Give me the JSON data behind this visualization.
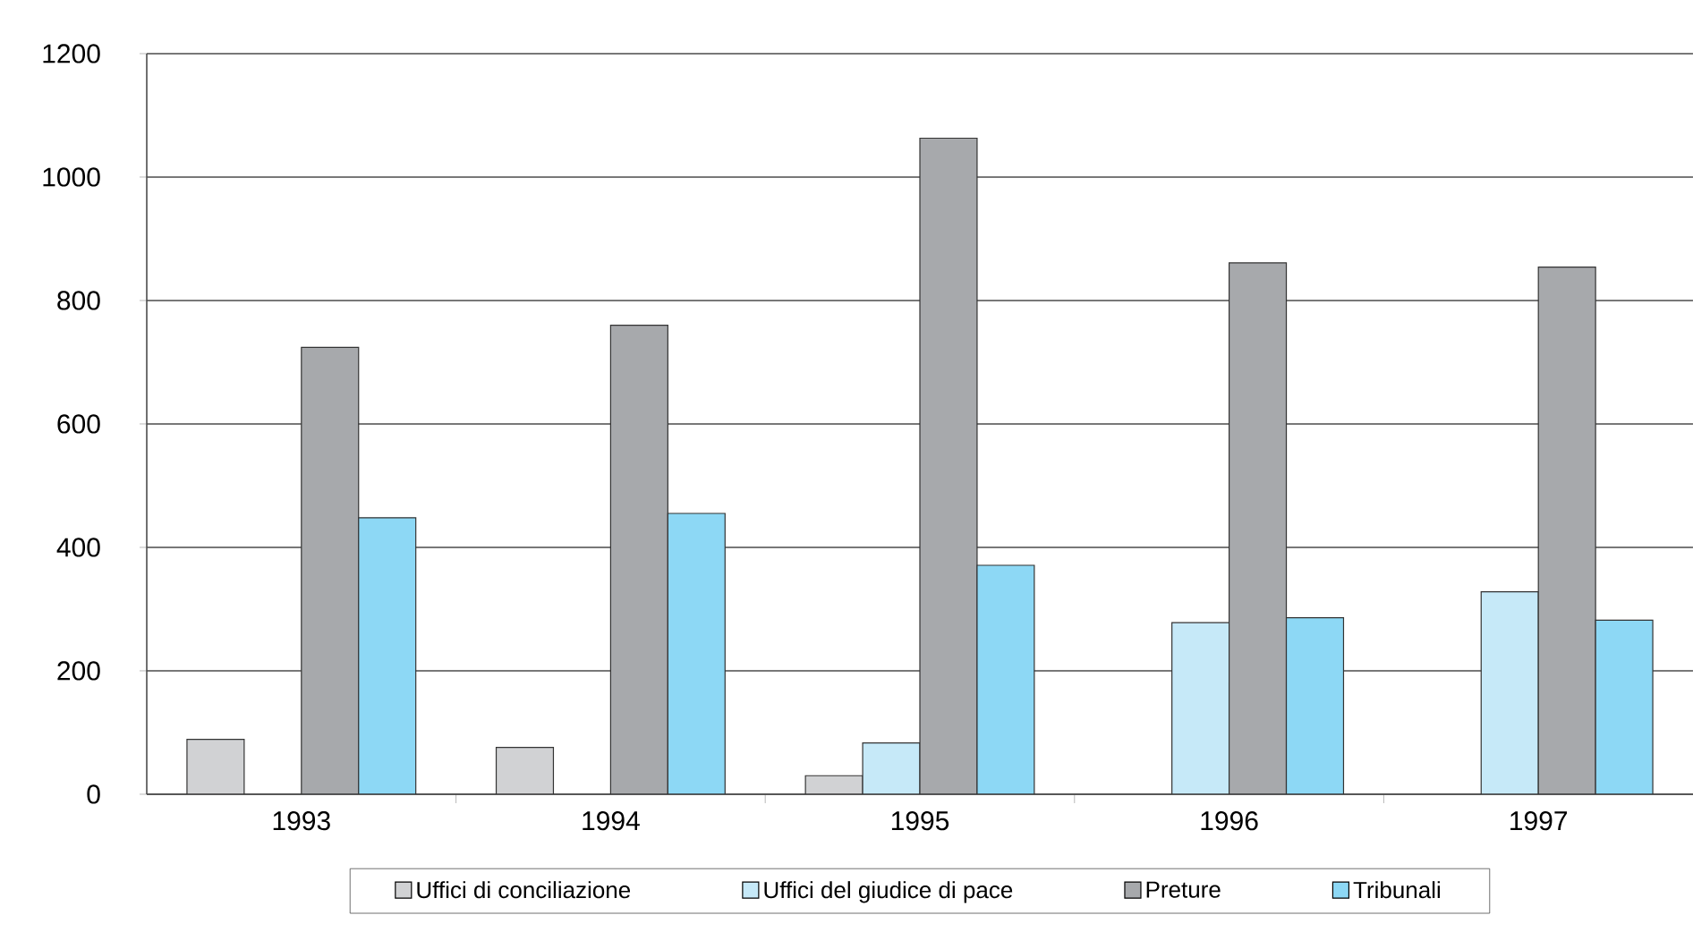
{
  "chart_data": {
    "type": "bar",
    "categories": [
      "1993",
      "1994",
      "1995",
      "1996",
      "1997"
    ],
    "series": [
      {
        "name": "Uffici di conciliazione",
        "color": "#d1d2d4",
        "values": [
          89,
          76,
          30,
          null,
          null
        ]
      },
      {
        "name": "Uffici del giudice di pace",
        "color": "#c6e9f8",
        "values": [
          null,
          null,
          83,
          278,
          328
        ]
      },
      {
        "name": "Preture",
        "color": "#a7a9ac",
        "values": [
          724,
          760,
          1063,
          861,
          854
        ]
      },
      {
        "name": "Tribunali",
        "color": "#8dd8f5",
        "values": [
          448,
          455,
          371,
          286,
          282
        ]
      }
    ],
    "ylim": [
      0,
      1200
    ],
    "yticks": [
      0,
      200,
      400,
      600,
      800,
      1000,
      1200
    ],
    "grid": "y",
    "legend": "bottom"
  }
}
